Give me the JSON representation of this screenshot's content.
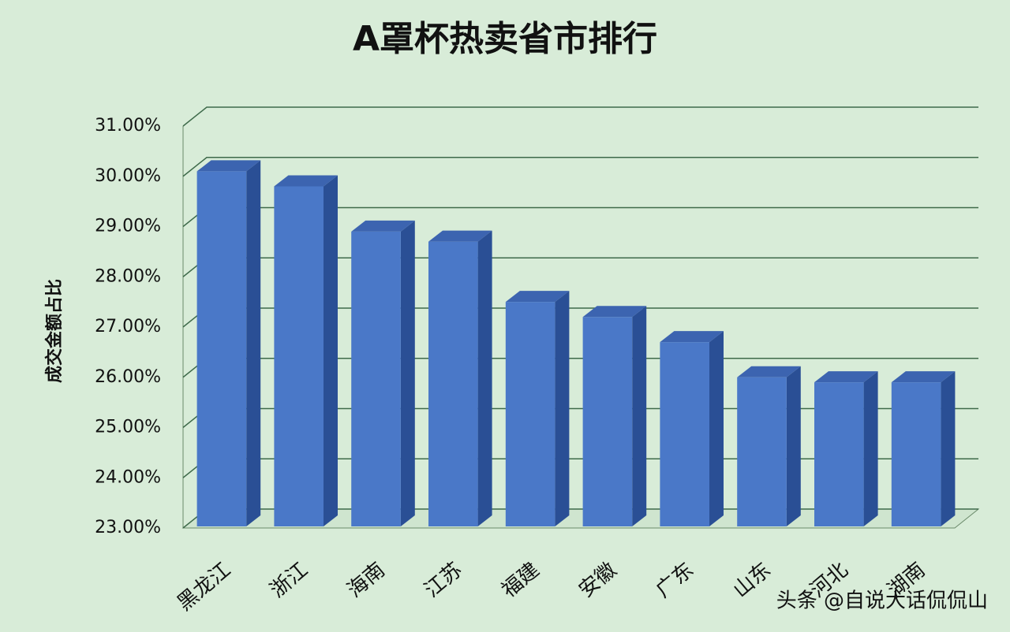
{
  "chart_data": {
    "type": "bar3d",
    "title": "A罩杯热卖省市排行",
    "y_label": "成交金额占比",
    "categories": [
      "黑龙江",
      "浙江",
      "海南",
      "江苏",
      "福建",
      "安徽",
      "广东",
      "山东",
      "河北",
      "湖南"
    ],
    "values": [
      30.1,
      29.8,
      28.9,
      28.7,
      27.5,
      27.2,
      26.7,
      26.0,
      25.9,
      25.9
    ],
    "color": "#4a78c8",
    "ylim": [
      23,
      31
    ],
    "yticks": [
      {
        "value": 23,
        "label": "23.00%"
      },
      {
        "value": 24,
        "label": "24.00%"
      },
      {
        "value": 25,
        "label": "25.00%"
      },
      {
        "value": 26,
        "label": "26.00%"
      },
      {
        "value": 27,
        "label": "27.00%"
      },
      {
        "value": 28,
        "label": "28.00%"
      },
      {
        "value": 29,
        "label": "29.00%"
      },
      {
        "value": 30,
        "label": "30.00%"
      },
      {
        "value": 31,
        "label": "31.00%"
      }
    ],
    "grid": true,
    "watermark": "头条 @自说大话侃侃山"
  }
}
